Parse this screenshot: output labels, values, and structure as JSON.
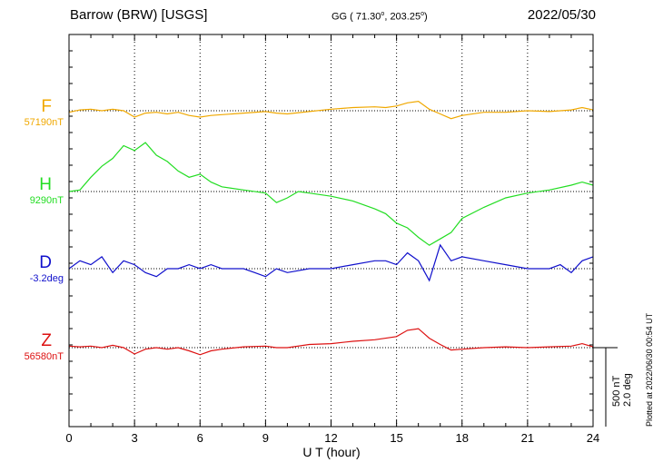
{
  "header": {
    "title": "Barrow (BRW)  [USGS]",
    "coords_prefix": "GG ( 71.30",
    "coords_mid": ", 203.25",
    "coords_suffix": ")",
    "deg": "o",
    "date": "2022/05/30"
  },
  "plotted_note": "Plotted at 2022/06/30 00:54 UT",
  "scale": {
    "nt": "500 nT",
    "deg": "2.0 deg"
  },
  "chart_data": {
    "type": "line",
    "xlabel": "U T (hour)",
    "xlim": [
      0,
      24
    ],
    "xticks": [
      0,
      3,
      6,
      9,
      12,
      15,
      18,
      21,
      24
    ],
    "grid": true,
    "components": [
      {
        "name": "F",
        "baseline_label": "57190nT",
        "color": "#f0a800",
        "points": [
          [
            0,
            57180
          ],
          [
            0.5,
            57195
          ],
          [
            1,
            57200
          ],
          [
            1.5,
            57190
          ],
          [
            2,
            57200
          ],
          [
            2.5,
            57190
          ],
          [
            3,
            57150
          ],
          [
            3.5,
            57175
          ],
          [
            4,
            57180
          ],
          [
            4.5,
            57170
          ],
          [
            5,
            57180
          ],
          [
            5.5,
            57160
          ],
          [
            6,
            57150
          ],
          [
            6.5,
            57160
          ],
          [
            7,
            57165
          ],
          [
            8,
            57175
          ],
          [
            9,
            57185
          ],
          [
            9.5,
            57175
          ],
          [
            10,
            57170
          ],
          [
            11,
            57185
          ],
          [
            12,
            57200
          ],
          [
            13,
            57210
          ],
          [
            14,
            57215
          ],
          [
            14.5,
            57210
          ],
          [
            15,
            57220
          ],
          [
            15.5,
            57240
          ],
          [
            16,
            57250
          ],
          [
            16.5,
            57200
          ],
          [
            17,
            57170
          ],
          [
            17.5,
            57140
          ],
          [
            18,
            57160
          ],
          [
            19,
            57180
          ],
          [
            20,
            57180
          ],
          [
            21,
            57190
          ],
          [
            22,
            57185
          ],
          [
            23,
            57195
          ],
          [
            23.5,
            57210
          ],
          [
            24,
            57195
          ]
        ]
      },
      {
        "name": "H",
        "baseline_label": "9290nT",
        "color": "#22dd22",
        "points": [
          [
            0,
            9290
          ],
          [
            0.5,
            9300
          ],
          [
            1,
            9380
          ],
          [
            1.5,
            9450
          ],
          [
            2,
            9500
          ],
          [
            2.5,
            9580
          ],
          [
            3,
            9550
          ],
          [
            3.5,
            9600
          ],
          [
            4,
            9520
          ],
          [
            4.5,
            9480
          ],
          [
            5,
            9420
          ],
          [
            5.5,
            9380
          ],
          [
            6,
            9400
          ],
          [
            6.5,
            9350
          ],
          [
            7,
            9320
          ],
          [
            8,
            9300
          ],
          [
            9,
            9280
          ],
          [
            9.5,
            9220
          ],
          [
            10,
            9250
          ],
          [
            10.5,
            9290
          ],
          [
            11,
            9280
          ],
          [
            12,
            9260
          ],
          [
            13,
            9230
          ],
          [
            14,
            9180
          ],
          [
            14.5,
            9150
          ],
          [
            15,
            9090
          ],
          [
            15.5,
            9060
          ],
          [
            16,
            9000
          ],
          [
            16.5,
            8950
          ],
          [
            17,
            8990
          ],
          [
            17.5,
            9030
          ],
          [
            18,
            9120
          ],
          [
            19,
            9190
          ],
          [
            20,
            9250
          ],
          [
            21,
            9280
          ],
          [
            22,
            9300
          ],
          [
            23,
            9330
          ],
          [
            23.5,
            9350
          ],
          [
            24,
            9330
          ]
        ]
      },
      {
        "name": "D",
        "baseline_label": "-3.2deg",
        "color": "#1010cc",
        "points": [
          [
            0,
            -3.2
          ],
          [
            0.5,
            -3.0
          ],
          [
            1,
            -3.1
          ],
          [
            1.5,
            -2.9
          ],
          [
            2,
            -3.3
          ],
          [
            2.5,
            -3.0
          ],
          [
            3,
            -3.1
          ],
          [
            3.5,
            -3.3
          ],
          [
            4,
            -3.4
          ],
          [
            4.5,
            -3.2
          ],
          [
            5,
            -3.2
          ],
          [
            5.5,
            -3.1
          ],
          [
            6,
            -3.2
          ],
          [
            6.5,
            -3.1
          ],
          [
            7,
            -3.2
          ],
          [
            8,
            -3.2
          ],
          [
            8.5,
            -3.3
          ],
          [
            9,
            -3.4
          ],
          [
            9.5,
            -3.2
          ],
          [
            10,
            -3.3
          ],
          [
            11,
            -3.2
          ],
          [
            12,
            -3.2
          ],
          [
            13,
            -3.1
          ],
          [
            14,
            -3.0
          ],
          [
            14.5,
            -3.0
          ],
          [
            15,
            -3.1
          ],
          [
            15.5,
            -2.8
          ],
          [
            16,
            -3.0
          ],
          [
            16.5,
            -3.5
          ],
          [
            17,
            -2.6
          ],
          [
            17.5,
            -3.0
          ],
          [
            18,
            -2.9
          ],
          [
            19,
            -3.0
          ],
          [
            20,
            -3.1
          ],
          [
            21,
            -3.2
          ],
          [
            22,
            -3.2
          ],
          [
            22.5,
            -3.1
          ],
          [
            23,
            -3.3
          ],
          [
            23.5,
            -3.0
          ],
          [
            24,
            -2.9
          ]
        ]
      },
      {
        "name": "Z",
        "baseline_label": "56580nT",
        "color": "#dd1111",
        "points": [
          [
            0,
            56590
          ],
          [
            0.5,
            56585
          ],
          [
            1,
            56590
          ],
          [
            1.5,
            56580
          ],
          [
            2,
            56595
          ],
          [
            2.5,
            56580
          ],
          [
            3,
            56540
          ],
          [
            3.5,
            56570
          ],
          [
            4,
            56580
          ],
          [
            4.5,
            56570
          ],
          [
            5,
            56580
          ],
          [
            5.5,
            56560
          ],
          [
            6,
            56535
          ],
          [
            6.5,
            56560
          ],
          [
            7,
            56570
          ],
          [
            8,
            56585
          ],
          [
            9,
            56590
          ],
          [
            9.5,
            56580
          ],
          [
            10,
            56580
          ],
          [
            11,
            56600
          ],
          [
            12,
            56605
          ],
          [
            13,
            56620
          ],
          [
            14,
            56630
          ],
          [
            15,
            56650
          ],
          [
            15.5,
            56690
          ],
          [
            16,
            56700
          ],
          [
            16.5,
            56640
          ],
          [
            17,
            56600
          ],
          [
            17.5,
            56565
          ],
          [
            18,
            56570
          ],
          [
            19,
            56580
          ],
          [
            20,
            56585
          ],
          [
            21,
            56580
          ],
          [
            22,
            56585
          ],
          [
            23,
            56590
          ],
          [
            23.5,
            56605
          ],
          [
            24,
            56585
          ]
        ]
      }
    ]
  }
}
